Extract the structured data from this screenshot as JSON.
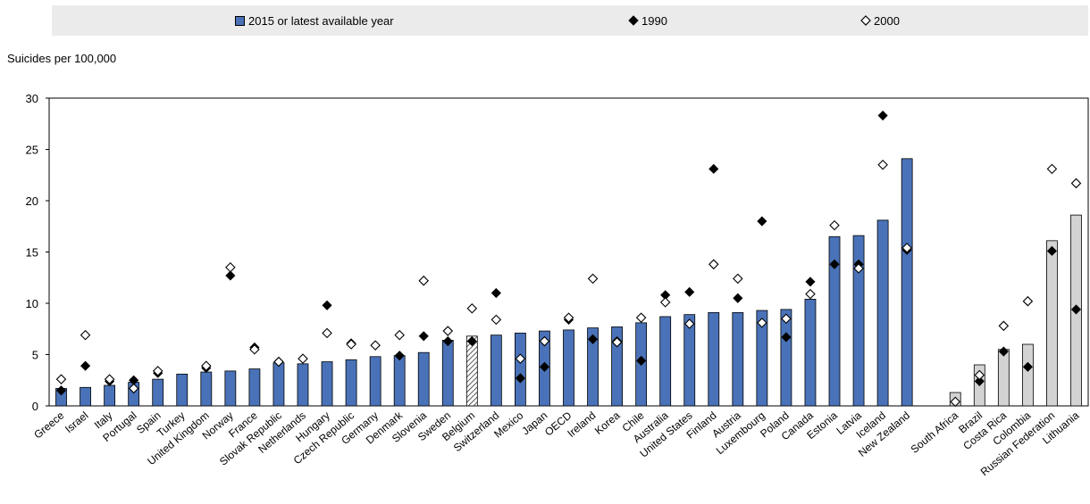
{
  "chart_data": {
    "type": "bar",
    "ylabel": "Suicides per 100,000",
    "ylim": [
      0,
      30
    ],
    "yticks": [
      "0",
      "5",
      "10",
      "15",
      "20",
      "25",
      "30"
    ],
    "legend_position": "top",
    "series": [
      {
        "name": "2015 or latest available year",
        "kind": "bar"
      },
      {
        "name": "1990",
        "kind": "filled-diamond"
      },
      {
        "name": "2000",
        "kind": "hollow-diamond"
      }
    ],
    "colors": {
      "bar_main": "#4a72b8",
      "bar_partner": "#d3d3d3",
      "marker": "#000000"
    },
    "groups": [
      {
        "categories": [
          "Greece",
          "Israel",
          "Italy",
          "Portugal",
          "Spain",
          "Turkey",
          "United Kingdom",
          "Norway",
          "France",
          "Slovak Republic",
          "Netherlands",
          "Hungary",
          "Czech Republic",
          "Germany",
          "Denmark",
          "Slovenia",
          "Sweden",
          "Belgium",
          "Switzerland",
          "Mexico",
          "Japan",
          "OECD",
          "Ireland",
          "Korea",
          "Chile",
          "Australia",
          "United States",
          "Finland",
          "Austria",
          "Luxembourg",
          "Poland",
          "Canada",
          "Estonia",
          "Latvia",
          "Iceland",
          "New Zealand"
        ],
        "bar_values": [
          1.7,
          1.8,
          2.0,
          2.3,
          2.6,
          3.1,
          3.3,
          3.4,
          3.6,
          4.2,
          4.1,
          4.3,
          4.5,
          4.8,
          4.9,
          5.2,
          6.4,
          6.8,
          6.9,
          7.1,
          7.3,
          7.4,
          7.6,
          7.7,
          8.1,
          8.7,
          8.9,
          9.1,
          9.1,
          9.3,
          9.4,
          10.4,
          16.5,
          16.6,
          18.1,
          24.1
        ],
        "values_1990": [
          1.5,
          3.9,
          2.4,
          2.5,
          3.2,
          null,
          3.7,
          12.7,
          5.7,
          4.3,
          4.6,
          9.8,
          6.1,
          5.9,
          4.9,
          6.8,
          6.3,
          6.3,
          11.0,
          2.7,
          3.8,
          8.4,
          6.5,
          6.3,
          4.4,
          10.8,
          11.1,
          23.1,
          10.5,
          18.0,
          6.7,
          12.1,
          13.8,
          13.8,
          28.3,
          15.2
        ],
        "values_2000": [
          2.6,
          6.9,
          2.6,
          1.7,
          3.4,
          null,
          3.9,
          13.5,
          5.5,
          4.3,
          4.6,
          7.1,
          6.0,
          5.9,
          6.9,
          12.2,
          7.3,
          9.5,
          8.4,
          4.6,
          6.3,
          8.6,
          12.4,
          6.2,
          8.6,
          10.1,
          8.0,
          13.8,
          12.4,
          8.1,
          8.5,
          10.9,
          17.6,
          13.4,
          23.5,
          15.4
        ]
      },
      {
        "categories": [
          "South Africa",
          "Brazil",
          "Costa Rica",
          "Colombia",
          "Russian Federation",
          "Lithuania"
        ],
        "bar_values": [
          1.3,
          4.0,
          5.5,
          6.0,
          16.1,
          18.6
        ],
        "values_1990": [
          null,
          2.4,
          5.3,
          3.8,
          15.1,
          9.4
        ],
        "values_2000": [
          0.4,
          3.0,
          7.8,
          10.2,
          23.1,
          21.7
        ]
      }
    ],
    "hatched_category": "Belgium",
    "grid": false
  }
}
